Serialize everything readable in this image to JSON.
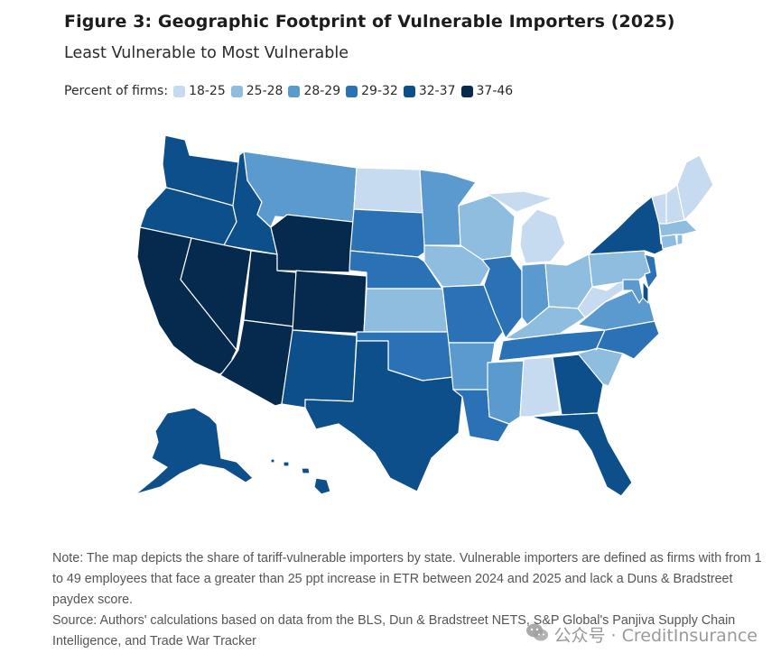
{
  "title": "Figure 3: Geographic Footprint of Vulnerable Importers (2025)",
  "subtitle": "Least Vulnerable to Most Vulnerable",
  "legend": {
    "label": "Percent of firms:",
    "bins": [
      {
        "label": "18-25",
        "color": "#c6dbef"
      },
      {
        "label": "25-28",
        "color": "#8fbde0"
      },
      {
        "label": "28-29",
        "color": "#5a9acf"
      },
      {
        "label": "29-32",
        "color": "#2a72b5"
      },
      {
        "label": "32-37",
        "color": "#0d4f8b"
      },
      {
        "label": "37-46",
        "color": "#062a4d"
      }
    ]
  },
  "map_data": {
    "type": "choropleth",
    "region": "United States",
    "states": [
      {
        "state": "WA",
        "bin": 4
      },
      {
        "state": "OR",
        "bin": 4
      },
      {
        "state": "CA",
        "bin": 5
      },
      {
        "state": "ID",
        "bin": 4
      },
      {
        "state": "NV",
        "bin": 5
      },
      {
        "state": "UT",
        "bin": 5
      },
      {
        "state": "AZ",
        "bin": 5
      },
      {
        "state": "MT",
        "bin": 2
      },
      {
        "state": "WY",
        "bin": 5
      },
      {
        "state": "CO",
        "bin": 5
      },
      {
        "state": "NM",
        "bin": 4
      },
      {
        "state": "ND",
        "bin": 0
      },
      {
        "state": "SD",
        "bin": 3
      },
      {
        "state": "NE",
        "bin": 3
      },
      {
        "state": "KS",
        "bin": 1
      },
      {
        "state": "OK",
        "bin": 3
      },
      {
        "state": "TX",
        "bin": 4
      },
      {
        "state": "MN",
        "bin": 2
      },
      {
        "state": "IA",
        "bin": 1
      },
      {
        "state": "MO",
        "bin": 3
      },
      {
        "state": "AR",
        "bin": 2
      },
      {
        "state": "LA",
        "bin": 3
      },
      {
        "state": "WI",
        "bin": 1
      },
      {
        "state": "IL",
        "bin": 3
      },
      {
        "state": "MI",
        "bin": 0
      },
      {
        "state": "IN",
        "bin": 2
      },
      {
        "state": "OH",
        "bin": 1
      },
      {
        "state": "KY",
        "bin": 1
      },
      {
        "state": "TN",
        "bin": 3
      },
      {
        "state": "MS",
        "bin": 2
      },
      {
        "state": "AL",
        "bin": 0
      },
      {
        "state": "GA",
        "bin": 4
      },
      {
        "state": "FL",
        "bin": 4
      },
      {
        "state": "SC",
        "bin": 1
      },
      {
        "state": "NC",
        "bin": 3
      },
      {
        "state": "VA",
        "bin": 2
      },
      {
        "state": "WV",
        "bin": 0
      },
      {
        "state": "PA",
        "bin": 1
      },
      {
        "state": "NY",
        "bin": 4
      },
      {
        "state": "NJ",
        "bin": 3
      },
      {
        "state": "DE",
        "bin": 4
      },
      {
        "state": "MD",
        "bin": 2
      },
      {
        "state": "CT",
        "bin": 1
      },
      {
        "state": "RI",
        "bin": 1
      },
      {
        "state": "MA",
        "bin": 1
      },
      {
        "state": "VT",
        "bin": 0
      },
      {
        "state": "NH",
        "bin": 0
      },
      {
        "state": "ME",
        "bin": 0
      },
      {
        "state": "AK",
        "bin": 4
      },
      {
        "state": "HI",
        "bin": 4
      }
    ]
  },
  "notes": {
    "note": "Note: The map depicts the share of tariff-vulnerable importers by state. Vulnerable importers are defined as firms with from 1 to 49 employees that face a greater than 25 ppt increase in ETR between 2024 and 2025 and lack a Duns & Bradstreet paydex score.",
    "source": "Source: Authors' calculations based on data from the BLS, Dun & Bradstreet NETS, S&P Global's Panjiva Supply Chain Intelligence, and Trade War Tracker"
  },
  "watermark": "公众号 · CreditInsurance"
}
